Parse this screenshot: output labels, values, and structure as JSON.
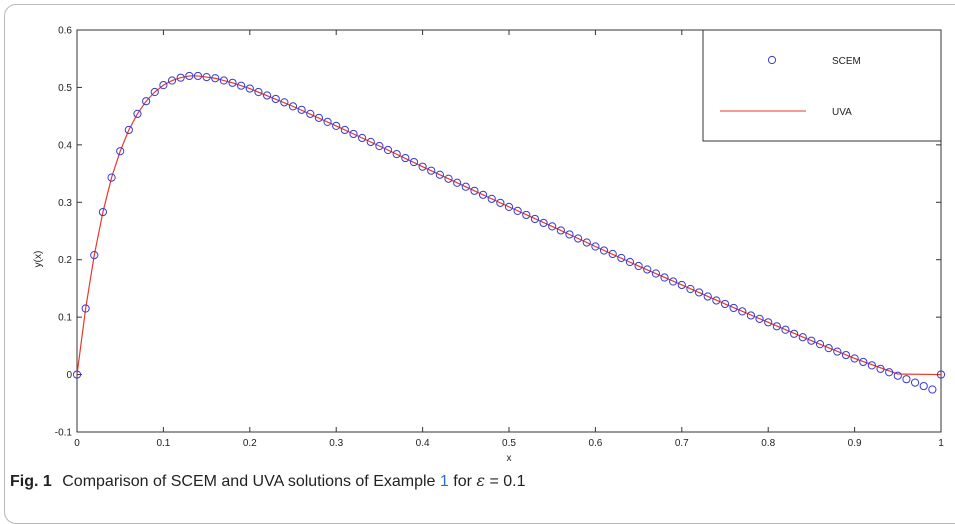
{
  "caption": {
    "fig_label": "Fig. 1",
    "text_before_ref": "Comparison of SCEM and UVA solutions of Example",
    "ref": "1",
    "text_after_ref": "for",
    "epsilon_symbol": "ε",
    "equals": "= 0.1"
  },
  "chart_data": {
    "type": "line",
    "title": "",
    "xlabel": "x",
    "ylabel": "y(x)",
    "xlim": [
      0,
      1
    ],
    "ylim": [
      -0.1,
      0.6
    ],
    "xticks": [
      0,
      0.1,
      0.2,
      0.3,
      0.4,
      0.5,
      0.6,
      0.7,
      0.8,
      0.9,
      1
    ],
    "xtick_labels": [
      "0",
      "0.1",
      "0.2",
      "0.3",
      "0.4",
      "0.5",
      "0.6",
      "0.7",
      "0.8",
      "0.9",
      "1"
    ],
    "yticks": [
      -0.1,
      0,
      0.1,
      0.2,
      0.3,
      0.4,
      0.5,
      0.6
    ],
    "ytick_labels": [
      "-0.1",
      "0",
      "0.1",
      "0.2",
      "0.3",
      "0.4",
      "0.5",
      "0.6"
    ],
    "grid": false,
    "legend_position": "top-right",
    "series": [
      {
        "name": "SCEM",
        "style": "markers",
        "marker": "open-circle",
        "color": "#3a3ad0",
        "x": [
          0,
          0.01,
          0.02,
          0.03,
          0.04,
          0.05,
          0.06,
          0.07,
          0.08,
          0.09,
          0.1,
          0.11,
          0.12,
          0.13,
          0.14,
          0.15,
          0.16,
          0.17,
          0.18,
          0.19,
          0.2,
          0.21,
          0.22,
          0.23,
          0.24,
          0.25,
          0.26,
          0.27,
          0.28,
          0.29,
          0.3,
          0.31,
          0.32,
          0.33,
          0.34,
          0.35,
          0.36,
          0.37,
          0.38,
          0.39,
          0.4,
          0.41,
          0.42,
          0.43,
          0.44,
          0.45,
          0.46,
          0.47,
          0.48,
          0.49,
          0.5,
          0.51,
          0.52,
          0.53,
          0.54,
          0.55,
          0.56,
          0.57,
          0.58,
          0.59,
          0.6,
          0.61,
          0.62,
          0.63,
          0.64,
          0.65,
          0.66,
          0.67,
          0.68,
          0.69,
          0.7,
          0.71,
          0.72,
          0.73,
          0.74,
          0.75,
          0.76,
          0.77,
          0.78,
          0.79,
          0.8,
          0.81,
          0.82,
          0.83,
          0.84,
          0.85,
          0.86,
          0.87,
          0.88,
          0.89,
          0.9,
          0.91,
          0.92,
          0.93,
          0.94,
          0.95,
          0.96,
          0.97,
          0.98,
          0.99,
          1
        ],
        "y": [
          0,
          0.115,
          0.208,
          0.283,
          0.343,
          0.389,
          0.426,
          0.454,
          0.476,
          0.492,
          0.504,
          0.512,
          0.517,
          0.52,
          0.52,
          0.518,
          0.516,
          0.512,
          0.508,
          0.503,
          0.498,
          0.492,
          0.486,
          0.48,
          0.474,
          0.467,
          0.461,
          0.454,
          0.447,
          0.44,
          0.433,
          0.426,
          0.419,
          0.412,
          0.405,
          0.398,
          0.391,
          0.384,
          0.377,
          0.37,
          0.362,
          0.355,
          0.348,
          0.341,
          0.334,
          0.327,
          0.32,
          0.313,
          0.306,
          0.299,
          0.292,
          0.285,
          0.278,
          0.271,
          0.264,
          0.258,
          0.251,
          0.244,
          0.237,
          0.23,
          0.223,
          0.216,
          0.21,
          0.203,
          0.196,
          0.189,
          0.183,
          0.176,
          0.169,
          0.162,
          0.156,
          0.149,
          0.143,
          0.136,
          0.129,
          0.123,
          0.116,
          0.11,
          0.103,
          0.097,
          0.091,
          0.084,
          0.078,
          0.071,
          0.065,
          0.059,
          0.053,
          0.046,
          0.04,
          0.034,
          0.028,
          0.022,
          0.016,
          0.01,
          0.004,
          -0.002,
          -0.008,
          -0.014,
          -0.02,
          -0.026,
          0
        ]
      },
      {
        "name": "UVA",
        "style": "line",
        "color": "#e83a2a",
        "x": [
          0,
          0.01,
          0.02,
          0.03,
          0.04,
          0.05,
          0.06,
          0.07,
          0.08,
          0.09,
          0.1,
          0.11,
          0.12,
          0.13,
          0.14,
          0.15,
          0.16,
          0.17,
          0.18,
          0.19,
          0.2,
          0.25,
          0.3,
          0.35,
          0.4,
          0.45,
          0.5,
          0.55,
          0.6,
          0.65,
          0.7,
          0.75,
          0.8,
          0.85,
          0.9,
          0.95,
          1
        ],
        "y": [
          0,
          0.115,
          0.208,
          0.283,
          0.343,
          0.389,
          0.426,
          0.454,
          0.476,
          0.492,
          0.504,
          0.512,
          0.517,
          0.52,
          0.52,
          0.518,
          0.516,
          0.512,
          0.508,
          0.503,
          0.498,
          0.467,
          0.433,
          0.398,
          0.362,
          0.327,
          0.292,
          0.258,
          0.223,
          0.189,
          0.156,
          0.123,
          0.091,
          0.059,
          0.028,
          0.001,
          0
        ]
      }
    ],
    "colors": {
      "scem": "#3a3ad0",
      "uva": "#e83a2a",
      "axis": "#333333"
    }
  }
}
